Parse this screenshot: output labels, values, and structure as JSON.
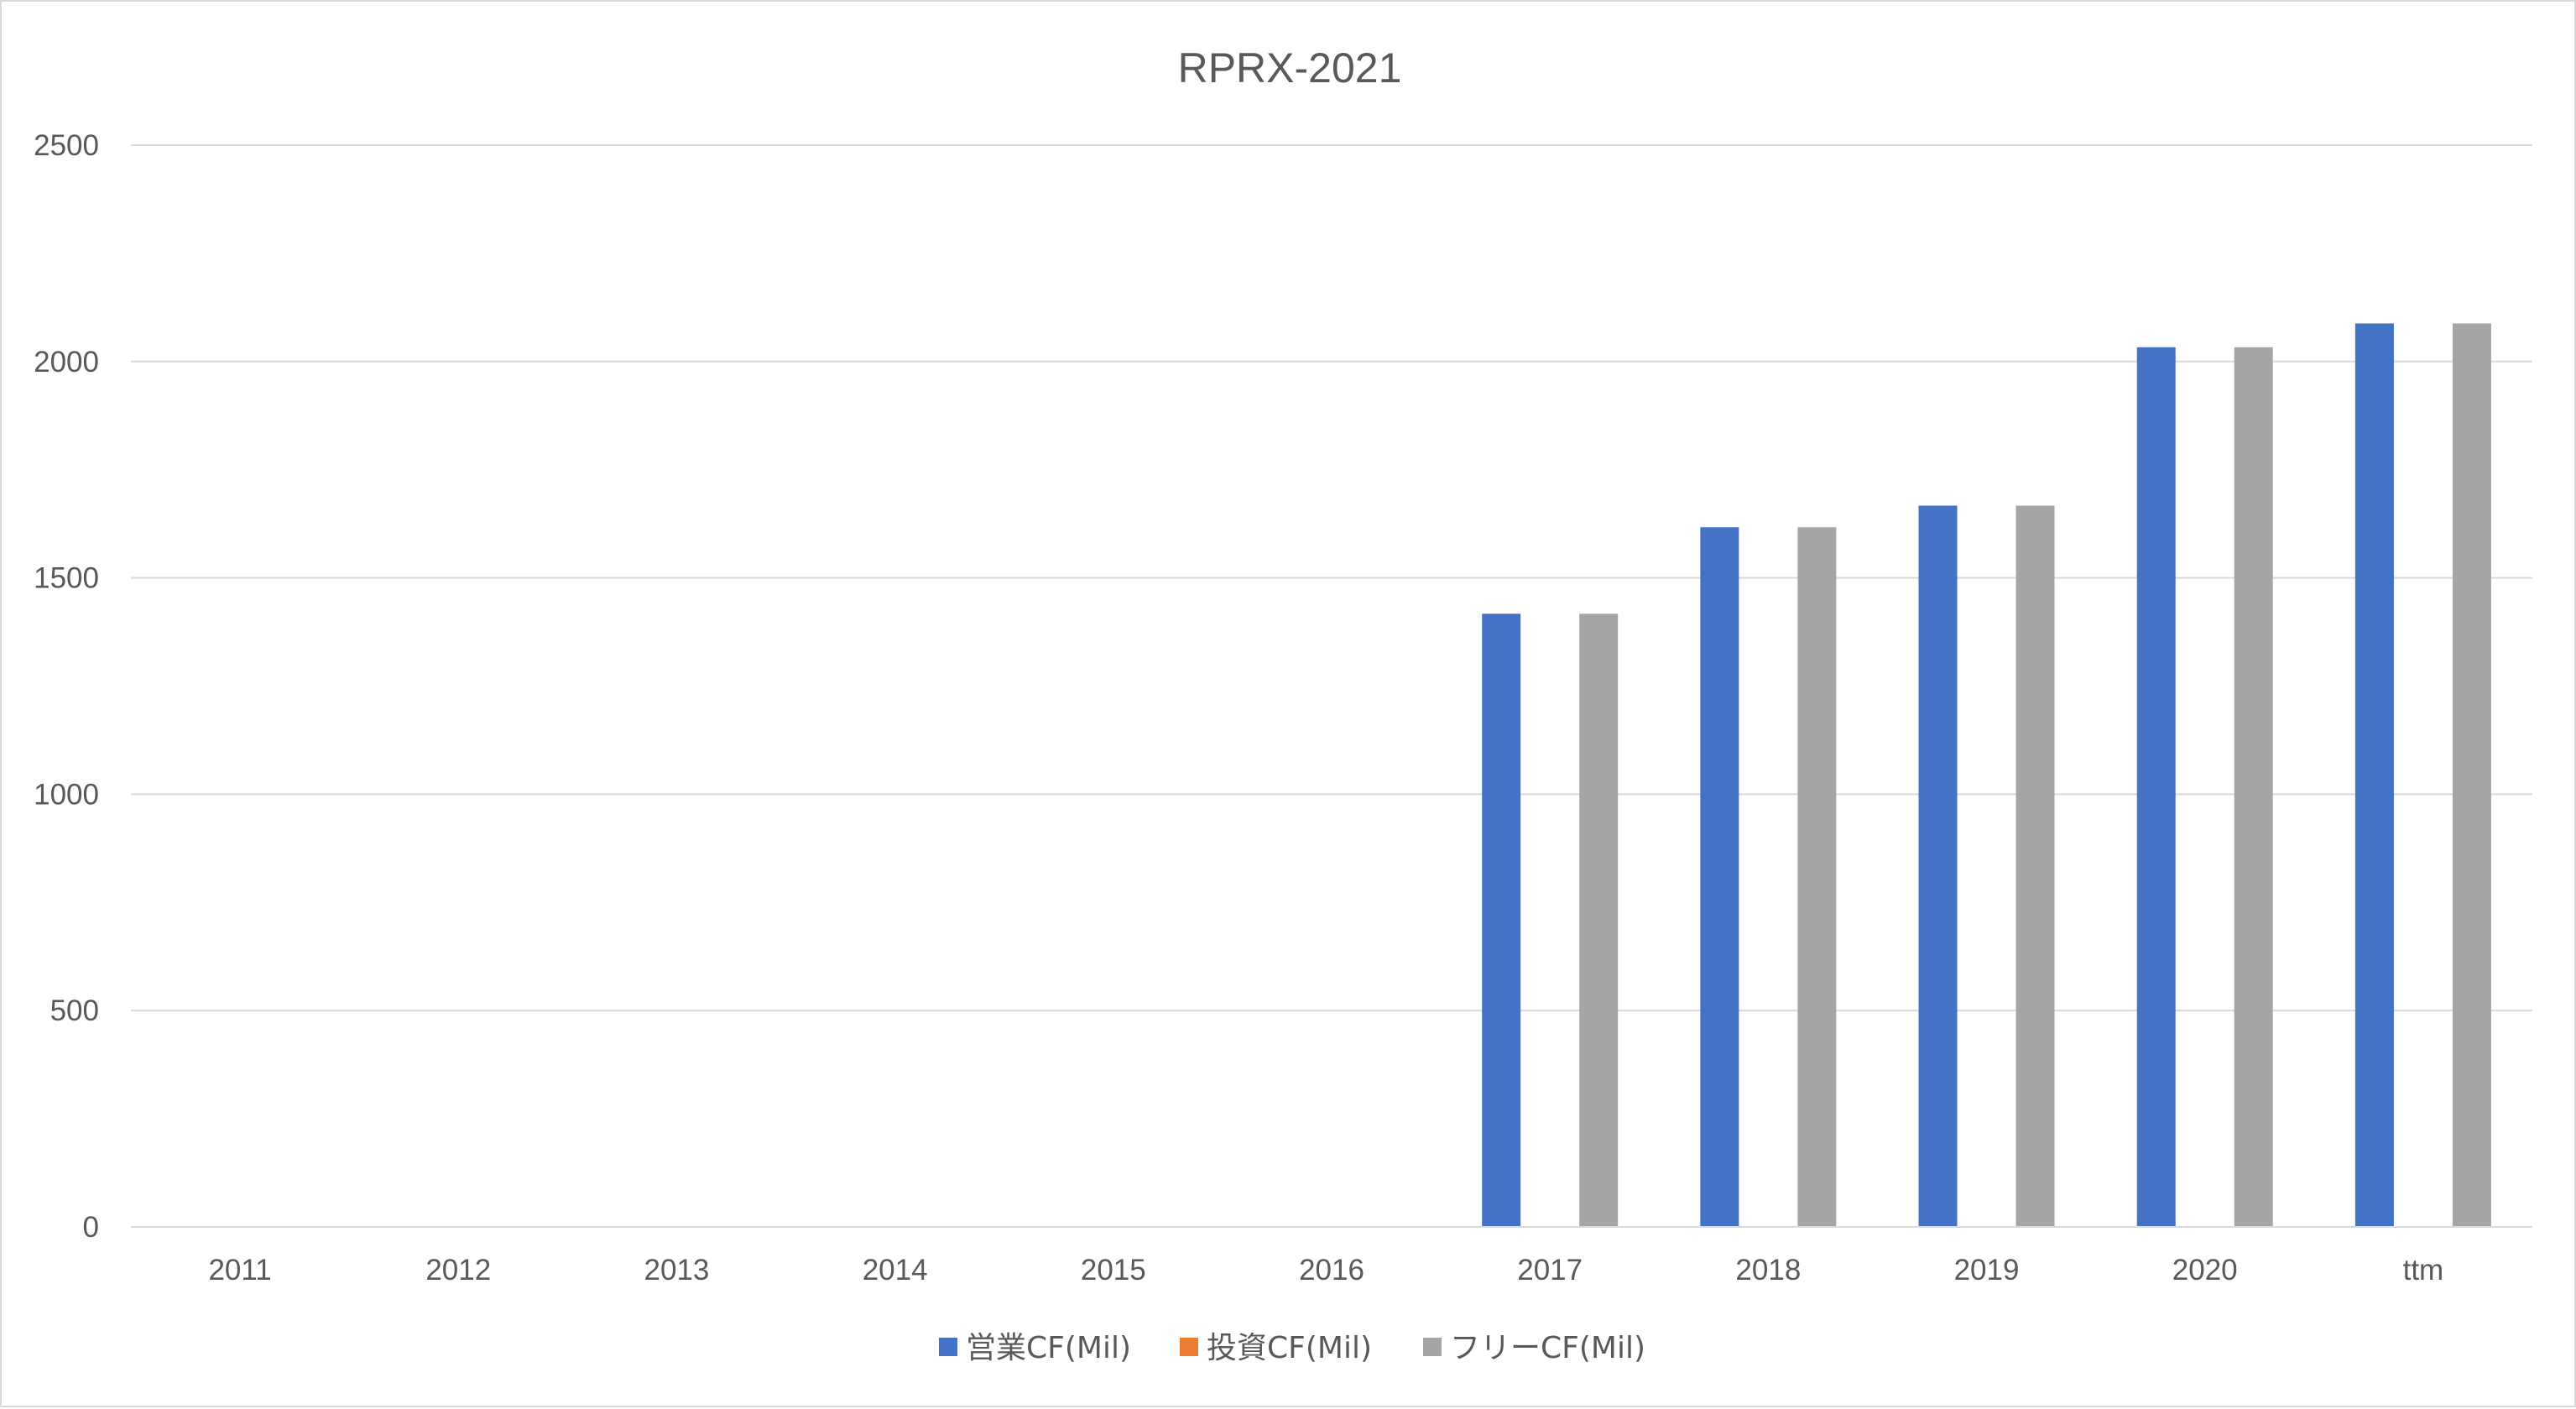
{
  "chart_data": {
    "type": "bar",
    "title": "RPRX-2021",
    "xlabel": "",
    "ylabel": "",
    "categories": [
      "2011",
      "2012",
      "2013",
      "2014",
      "2015",
      "2016",
      "2017",
      "2018",
      "2019",
      "2020",
      "ttm"
    ],
    "ylim": [
      0,
      2500
    ],
    "yticks": [
      0,
      500,
      1000,
      1500,
      2000,
      2500
    ],
    "grid": true,
    "legend_position": "bottom",
    "series": [
      {
        "name": "営業CF(Mil)",
        "color": "#4472C4",
        "values": [
          null,
          null,
          null,
          null,
          null,
          null,
          1417,
          1617,
          1667,
          2033,
          2088
        ]
      },
      {
        "name": "投資CF(Mil)",
        "color": "#ED7D31",
        "values": [
          null,
          null,
          null,
          null,
          null,
          null,
          null,
          null,
          null,
          null,
          null
        ]
      },
      {
        "name": "フリーCF(Mil)",
        "color": "#A5A5A5",
        "values": [
          null,
          null,
          null,
          null,
          null,
          null,
          1417,
          1617,
          1667,
          2033,
          2088
        ]
      }
    ]
  }
}
